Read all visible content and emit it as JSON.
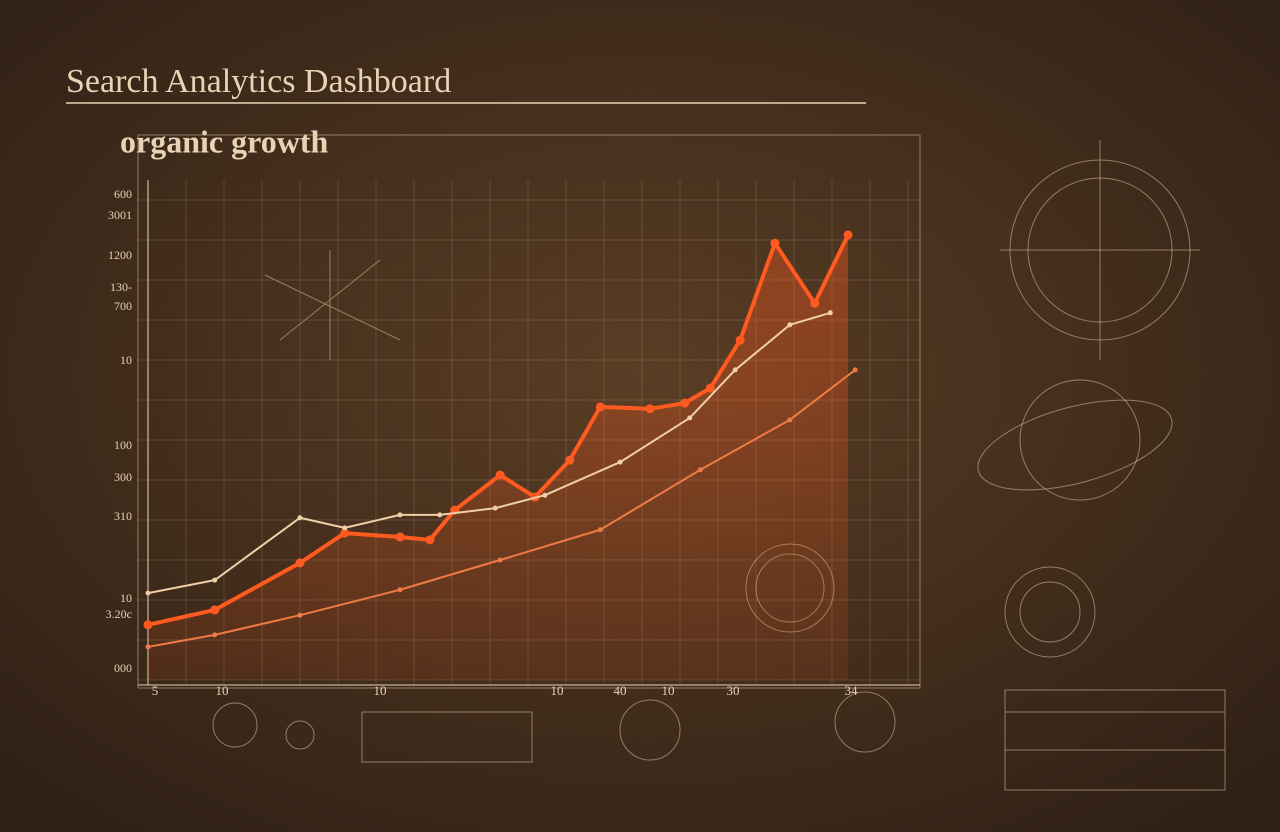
{
  "chart_data": {
    "type": "line",
    "title": "Search Analytics Dashboard",
    "subtitle": "organic growth",
    "y_axis_labels": [
      "600",
      "3001",
      "1200",
      "130-",
      "700",
      "10",
      "100",
      "300",
      "310",
      "10",
      "3.20c",
      "000"
    ],
    "x_axis_labels": [
      "5",
      "10",
      "10",
      "10",
      "40",
      "10",
      "30",
      "34"
    ],
    "xlim": [
      0,
      100
    ],
    "ylim": [
      0,
      100
    ],
    "series": [
      {
        "color": "#ff5a1f",
        "x": [
          0,
          9.4,
          21.4,
          27.7,
          35.5,
          39.7,
          43.2,
          49.6,
          54.5,
          59.4,
          63.7,
          70.7,
          75.6,
          79.2,
          83.4,
          88.3,
          93.9,
          98.6
        ],
        "values": [
          11.5,
          14.6,
          24.4,
          30.6,
          29.8,
          29.2,
          35.4,
          42.7,
          38.1,
          45.8,
          56.9,
          56.5,
          57.7,
          60.8,
          70.8,
          91.0,
          78.5,
          92.7
        ]
      },
      {
        "color": "#f0cfa8",
        "x": [
          0,
          9.4,
          21.4,
          27.7,
          35.5,
          41.1,
          48.9,
          55.9,
          66.5,
          76.3,
          82.7,
          90.4,
          96.1
        ],
        "values": [
          18.1,
          20.8,
          33.8,
          31.7,
          34.4,
          34.4,
          35.8,
          38.5,
          45.4,
          54.6,
          64.6,
          74.0,
          76.5
        ]
      },
      {
        "color": "#f07a45",
        "x": [
          0,
          9.4,
          21.4,
          35.5,
          49.6,
          63.7,
          77.8,
          90.4,
          99.6
        ],
        "values": [
          6.9,
          9.4,
          13.5,
          18.8,
          25.0,
          31.3,
          43.8,
          54.2,
          64.6
        ]
      }
    ]
  }
}
